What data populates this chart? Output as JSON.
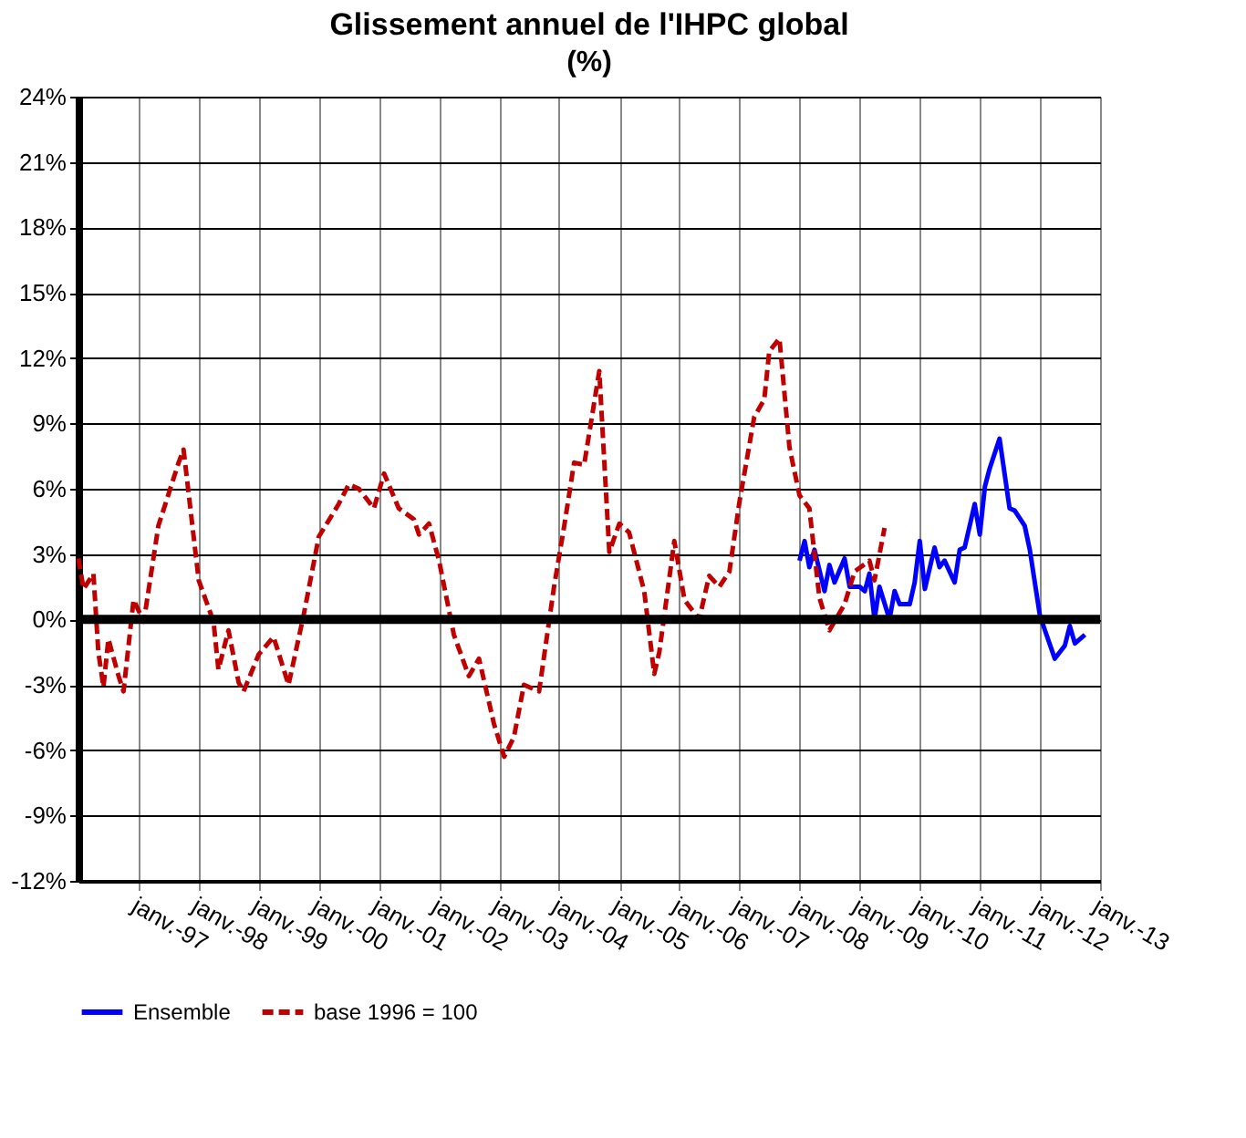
{
  "chart_data": {
    "type": "line",
    "title": "Glissement annuel de l'IHPC global",
    "subtitle": "(%)",
    "xlim": [
      "1996-01",
      "2013-01"
    ],
    "xticks": [
      {
        "value": "1997-01",
        "label": "janv.-97"
      },
      {
        "value": "1998-01",
        "label": "janv.-98"
      },
      {
        "value": "1999-01",
        "label": "janv.-99"
      },
      {
        "value": "2000-01",
        "label": "janv.-00"
      },
      {
        "value": "2001-01",
        "label": "janv.-01"
      },
      {
        "value": "2002-01",
        "label": "janv.-02"
      },
      {
        "value": "2003-01",
        "label": "janv.-03"
      },
      {
        "value": "2004-01",
        "label": "janv.-04"
      },
      {
        "value": "2005-01",
        "label": "janv.-05"
      },
      {
        "value": "2006-01",
        "label": "janv.-06"
      },
      {
        "value": "2007-01",
        "label": "janv.-07"
      },
      {
        "value": "2008-01",
        "label": "janv.-08"
      },
      {
        "value": "2009-01",
        "label": "janv.-09"
      },
      {
        "value": "2010-01",
        "label": "janv.-10"
      },
      {
        "value": "2011-01",
        "label": "janv.-11"
      },
      {
        "value": "2012-01",
        "label": "janv.-12"
      },
      {
        "value": "2013-01",
        "label": "janv.-13"
      }
    ],
    "ylim": [
      -12,
      24
    ],
    "yticks": [
      {
        "value": -12,
        "label": "-12%"
      },
      {
        "value": -9,
        "label": "-9%"
      },
      {
        "value": -6,
        "label": "-6%"
      },
      {
        "value": -3,
        "label": "-3%"
      },
      {
        "value": 0,
        "label": "0%"
      },
      {
        "value": 3,
        "label": "3%"
      },
      {
        "value": 6,
        "label": "6%"
      },
      {
        "value": 9,
        "label": "9%"
      },
      {
        "value": 12,
        "label": "12%"
      },
      {
        "value": 15,
        "label": "15%"
      },
      {
        "value": 18,
        "label": "18%"
      },
      {
        "value": 21,
        "label": "21%"
      },
      {
        "value": 24,
        "label": "24%"
      }
    ],
    "grid": true,
    "legend": "bottom",
    "marker": "none",
    "ref_lines": [
      {
        "axis": "y",
        "value": 0,
        "color": "#000000"
      }
    ],
    "series": [
      {
        "name": "Ensemble",
        "color": "#0000ff",
        "line_style": "solid",
        "x": [
          "2008-01",
          "2008-02",
          "2008-03",
          "2008-04",
          "2008-06",
          "2008-07",
          "2008-08",
          "2008-10",
          "2008-11",
          "2009-01",
          "2009-02",
          "2009-03",
          "2009-04",
          "2009-05",
          "2009-07",
          "2009-08",
          "2009-09",
          "2009-11",
          "2009-12",
          "2010-01",
          "2010-02",
          "2010-04",
          "2010-05",
          "2010-06",
          "2010-08",
          "2010-09",
          "2010-10",
          "2010-12",
          "2011-01",
          "2011-02",
          "2011-03",
          "2011-05",
          "2011-07",
          "2011-08",
          "2011-10",
          "2011-11",
          "2012-01",
          "2012-02",
          "2012-04",
          "2012-06",
          "2012-07",
          "2012-08",
          "2012-10"
        ],
        "values": [
          2.7,
          3.6,
          2.4,
          3.2,
          1.3,
          2.5,
          1.7,
          2.8,
          1.5,
          1.5,
          1.3,
          2.1,
          0.0,
          1.5,
          0.0,
          1.3,
          0.7,
          0.7,
          1.7,
          3.6,
          1.4,
          3.3,
          2.4,
          2.7,
          1.7,
          3.2,
          3.3,
          5.3,
          3.9,
          6.1,
          6.9,
          8.3,
          5.1,
          5.0,
          4.3,
          3.2,
          0.2,
          -0.5,
          -1.8,
          -1.2,
          -0.3,
          -1.1,
          -0.7
        ]
      },
      {
        "name": "base 1996 = 100",
        "color": "#c00000",
        "line_style": "dashed",
        "x": [
          "1996-01",
          "1996-02",
          "1996-04",
          "1996-05",
          "1996-06",
          "1996-07",
          "1996-09",
          "1996-10",
          "1996-12",
          "1997-02",
          "1997-05",
          "1997-09",
          "1997-10",
          "1998-01",
          "1998-04",
          "1998-05",
          "1998-07",
          "1998-09",
          "1998-10",
          "1999-01",
          "1999-04",
          "1999-07",
          "1999-10",
          "2000-01",
          "2000-05",
          "2000-07",
          "2000-09",
          "2000-12",
          "2001-02",
          "2001-05",
          "2001-08",
          "2001-09",
          "2001-11",
          "2002-01",
          "2002-04",
          "2002-07",
          "2002-09",
          "2002-12",
          "2003-02",
          "2003-04",
          "2003-06",
          "2003-09",
          "2003-12",
          "2004-02",
          "2004-04",
          "2004-06",
          "2004-09",
          "2004-11",
          "2005-01",
          "2005-03",
          "2005-06",
          "2005-08",
          "2005-09",
          "2005-12",
          "2006-02",
          "2006-05",
          "2006-07",
          "2006-09",
          "2006-11",
          "2007-01",
          "2007-04",
          "2007-06",
          "2007-07",
          "2007-09",
          "2007-11",
          "2008-01",
          "2008-03",
          "2008-05",
          "2008-07",
          "2008-10",
          "2008-12",
          "2009-03",
          "2009-04",
          "2009-06"
        ],
        "values": [
          2.8,
          1.4,
          2.1,
          -1.5,
          -3.1,
          -0.9,
          -2.6,
          -3.3,
          0.9,
          -0.1,
          4.3,
          7.2,
          7.8,
          1.8,
          -0.1,
          -2.3,
          -0.5,
          -2.9,
          -3.3,
          -1.6,
          -0.8,
          -3.0,
          0.2,
          3.8,
          5.3,
          6.2,
          6.0,
          5.1,
          6.7,
          5.1,
          4.6,
          3.9,
          4.4,
          2.7,
          -0.7,
          -2.6,
          -1.8,
          -4.8,
          -6.3,
          -5.4,
          -3.0,
          -3.3,
          1.5,
          4.3,
          7.2,
          7.1,
          11.4,
          3.1,
          4.4,
          4.0,
          1.3,
          -2.5,
          -1.5,
          3.6,
          0.9,
          0.0,
          2.0,
          1.5,
          2.2,
          5.4,
          9.3,
          10.1,
          12.3,
          12.9,
          7.9,
          5.7,
          5.1,
          1.0,
          -0.5,
          0.7,
          2.2,
          2.7,
          1.8,
          4.2
        ]
      }
    ]
  }
}
